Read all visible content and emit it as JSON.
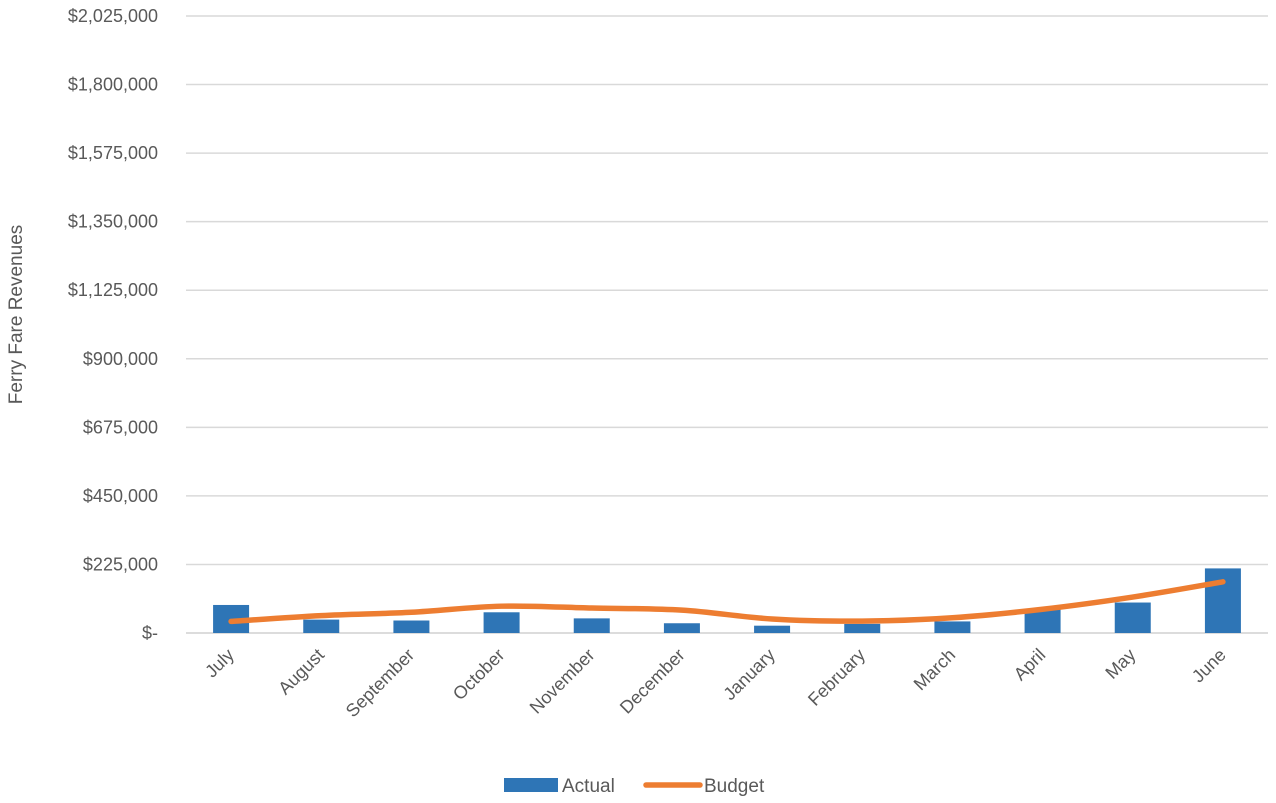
{
  "chart_data": {
    "type": "bar",
    "title": "",
    "xlabel": "",
    "ylabel": "Ferry Fare Revenues",
    "categories": [
      "July",
      "August",
      "September",
      "October",
      "November",
      "December",
      "January",
      "February",
      "March",
      "April",
      "May",
      "June"
    ],
    "ylim": [
      0,
      2025000
    ],
    "yticks": [
      0,
      225000,
      450000,
      675000,
      900000,
      1125000,
      1350000,
      1575000,
      1800000,
      2025000
    ],
    "ytick_labels": [
      "$-",
      "$225,000",
      "$450,000",
      "$675,000",
      "$900,000",
      "$1,125,000",
      "$1,350,000",
      "$1,575,000",
      "$1,800,000",
      "$2,025,000"
    ],
    "grid": true,
    "legend_position": "bottom-center",
    "series": [
      {
        "name": "Actual",
        "type": "bar",
        "color": "#2E75B6",
        "values": [
          92000,
          44000,
          41000,
          68000,
          48000,
          32000,
          24000,
          30000,
          38000,
          80000,
          100000,
          212000
        ]
      },
      {
        "name": "Budget",
        "type": "line",
        "color": "#ED7D31",
        "values": [
          38000,
          57000,
          68000,
          88000,
          82000,
          75000,
          46000,
          39000,
          50000,
          78000,
          118000,
          168000
        ]
      }
    ]
  }
}
